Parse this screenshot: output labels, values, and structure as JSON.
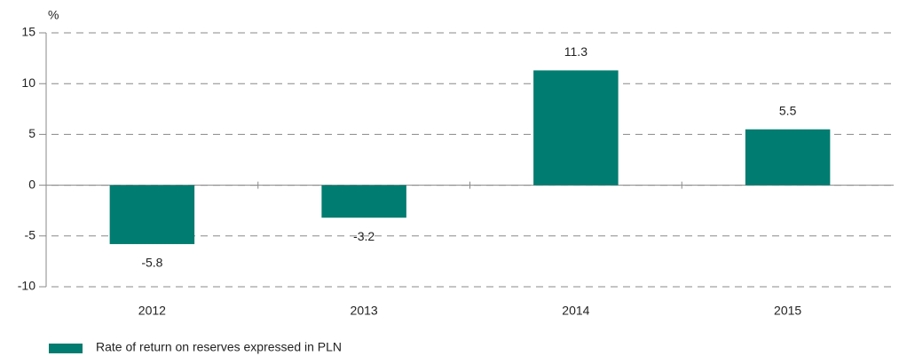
{
  "chart_data": {
    "type": "bar",
    "y_unit": "%",
    "categories": [
      "2012",
      "2013",
      "2014",
      "2015"
    ],
    "series": [
      {
        "name": "Rate of return on reserves expressed in PLN",
        "color": "#007c70",
        "values": [
          -5.8,
          -3.2,
          11.3,
          5.5
        ]
      }
    ],
    "ylim": [
      -10,
      15
    ],
    "yticks": [
      -10,
      -5,
      0,
      5,
      10,
      15
    ],
    "grid": true,
    "legend": "bottom-left"
  }
}
